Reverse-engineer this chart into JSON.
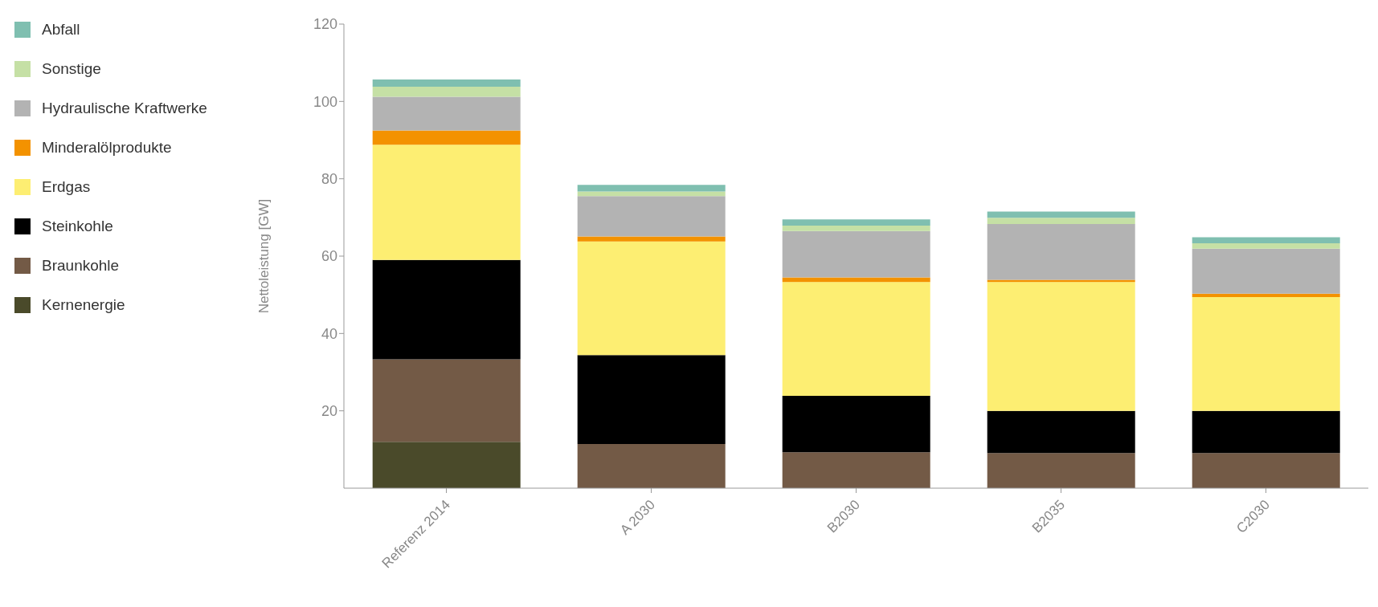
{
  "chart_data": {
    "type": "bar",
    "stacked": true,
    "ylabel": "Nettoleistung [GW]",
    "categories": [
      "Referenz 2014",
      "A 2030",
      "B2030",
      "B2035",
      "C2030"
    ],
    "series": [
      {
        "name": "Kernenergie",
        "color": "#4a4a2a",
        "values": [
          12,
          0,
          0,
          0,
          0
        ]
      },
      {
        "name": "Braunkohle",
        "color": "#735a46",
        "values": [
          21.3,
          11.4,
          9.3,
          9.1,
          9.1
        ]
      },
      {
        "name": "Steinkohle",
        "color": "#000000",
        "values": [
          25.7,
          23.0,
          14.6,
          10.9,
          10.9
        ]
      },
      {
        "name": "Erdgas",
        "color": "#fdee72",
        "values": [
          29.8,
          29.4,
          29.4,
          33.3,
          29.4
        ]
      },
      {
        "name": "Minderalölprodukte",
        "color": "#f39200",
        "values": [
          3.7,
          1.3,
          1.2,
          0.6,
          0.9
        ]
      },
      {
        "name": "Hydraulische Kraftwerke",
        "color": "#b3b3b3",
        "values": [
          8.7,
          10.4,
          12.0,
          14.4,
          11.6
        ]
      },
      {
        "name": "Sonstige",
        "color": "#c5e0a5",
        "values": [
          2.6,
          1.2,
          1.4,
          1.6,
          1.4
        ]
      },
      {
        "name": "Abfall",
        "color": "#7fbfb0",
        "values": [
          1.9,
          1.7,
          1.6,
          1.6,
          1.6
        ]
      }
    ],
    "ylim": [
      0,
      120
    ],
    "yticks": [
      20,
      40,
      60,
      80,
      100,
      120
    ],
    "grid": false,
    "legend": "top left"
  }
}
